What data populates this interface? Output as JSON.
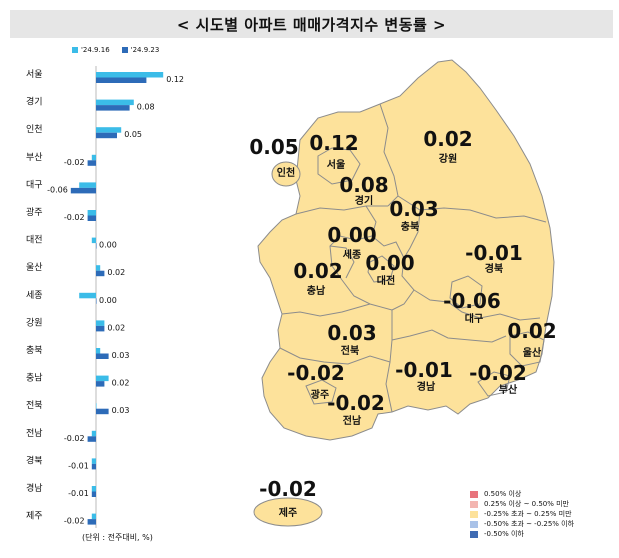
{
  "title": "< 시도별 아파트 매매가격지수 변동률 >",
  "footnote": "(단위 : 전주대비, %)",
  "chart_data": {
    "type": "bar",
    "orientation": "horizontal",
    "categories": [
      "서울",
      "경기",
      "인천",
      "부산",
      "대구",
      "광주",
      "대전",
      "울산",
      "세종",
      "강원",
      "충북",
      "충남",
      "전북",
      "전남",
      "경북",
      "경남",
      "제주"
    ],
    "series": [
      {
        "name": "'24.9.16",
        "color": "#3bbce8",
        "values": [
          0.16,
          0.09,
          0.06,
          -0.01,
          -0.04,
          -0.02,
          -0.01,
          0.01,
          -0.04,
          0.02,
          0.01,
          0.03,
          0.0,
          -0.01,
          -0.01,
          -0.01,
          -0.01
        ]
      },
      {
        "name": "'24.9.23",
        "color": "#2d6bb8",
        "values": [
          0.12,
          0.08,
          0.05,
          -0.02,
          -0.06,
          -0.02,
          0.0,
          0.02,
          0.0,
          0.02,
          0.03,
          0.02,
          0.03,
          -0.02,
          -0.01,
          -0.01,
          -0.02
        ]
      }
    ],
    "data_labels": [
      "0.12",
      "0.08",
      "0.05",
      "-0.02",
      "-0.06",
      "-0.02",
      "0.00",
      "0.02",
      "0.00",
      "0.02",
      "0.03",
      "0.02",
      "0.03",
      "-0.02",
      "-0.01",
      "-0.01",
      "-0.02"
    ]
  },
  "map": {
    "regions": [
      {
        "name": "인천",
        "value": "0.05"
      },
      {
        "name": "서울",
        "value": "0.12"
      },
      {
        "name": "강원",
        "value": "0.02"
      },
      {
        "name": "경기",
        "value": "0.08"
      },
      {
        "name": "충북",
        "value": "0.03"
      },
      {
        "name": "세종",
        "value": "0.00"
      },
      {
        "name": "대전",
        "value": "0.00"
      },
      {
        "name": "경북",
        "value": "-0.01"
      },
      {
        "name": "충남",
        "value": "0.02"
      },
      {
        "name": "대구",
        "value": "-0.06"
      },
      {
        "name": "울산",
        "value": "0.02"
      },
      {
        "name": "전북",
        "value": "0.03"
      },
      {
        "name": "광주",
        "value": "-0.02"
      },
      {
        "name": "경남",
        "value": "-0.01"
      },
      {
        "name": "부산",
        "value": "-0.02"
      },
      {
        "name": "전남",
        "value": "-0.02"
      },
      {
        "name": "제주",
        "value": "-0.02"
      }
    ],
    "fill_color": "#fde29b",
    "border_color": "#8c8c8c",
    "legend": [
      {
        "label": "0.50% 이상",
        "color": "#e8737c"
      },
      {
        "label": "0.25% 이상 ~ 0.50% 미만",
        "color": "#f3b5b0"
      },
      {
        "label": "-0.25% 초과 ~ 0.25% 미만",
        "color": "#fde29b"
      },
      {
        "label": "-0.50% 초과 ~ -0.25% 이하",
        "color": "#a9c2e8"
      },
      {
        "label": "-0.50% 이하",
        "color": "#3f6bb3"
      }
    ]
  }
}
